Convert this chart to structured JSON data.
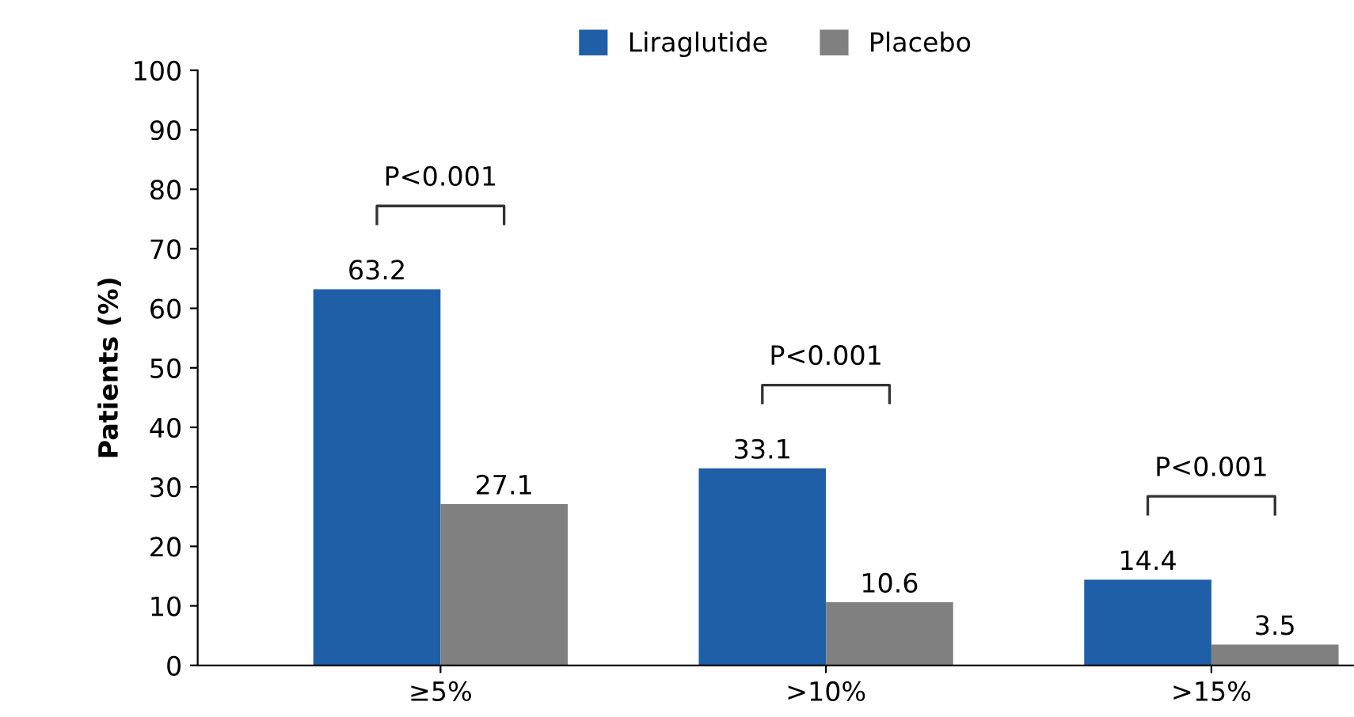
{
  "chart_data": {
    "type": "bar",
    "categories": [
      "≥5%",
      ">10%",
      ">15%"
    ],
    "series": [
      {
        "name": "Liraglutide",
        "color": "#1f5fa8",
        "values": [
          63.2,
          33.1,
          14.4
        ]
      },
      {
        "name": "Placebo",
        "color": "#808080",
        "values": [
          27.1,
          10.6,
          3.5
        ]
      }
    ],
    "ylabel": "Patients (%)",
    "ylim": [
      0,
      100
    ],
    "yticks": [
      0,
      10,
      20,
      30,
      40,
      50,
      60,
      70,
      80,
      90,
      100
    ],
    "data_labels": true,
    "legend": "top",
    "grid": false,
    "annotations": [
      "P<0.001",
      "P<0.001",
      "P<0.001"
    ]
  }
}
